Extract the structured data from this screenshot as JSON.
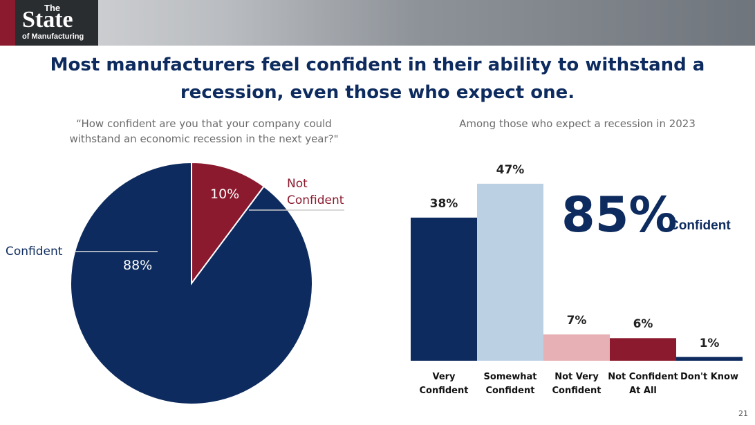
{
  "header": {
    "logo_small": "The",
    "logo_big": "State",
    "logo_sub": "of Manufacturing"
  },
  "title": "Most manufacturers feel confident in their ability to withstand a recession, even those who expect one.",
  "slide_number": "21",
  "chart_data": [
    {
      "type": "pie",
      "subtitle": "“How confident are you that your company could withstand an economic recession in the next year?\"",
      "categories": [
        "Not Confident",
        "Confident"
      ],
      "values": [
        10,
        88
      ],
      "value_labels": [
        "10%",
        "88%"
      ],
      "colors": [
        "#8b1a2e",
        "#0d2b5e"
      ]
    },
    {
      "type": "bar",
      "subtitle": "Among those who expect a recession in 2023",
      "categories": [
        "Very Confident",
        "Somewhat Confident",
        "Not Very Confident",
        "Not Confident At All",
        "Don't Know"
      ],
      "values": [
        38,
        47,
        7,
        6,
        1
      ],
      "value_labels": [
        "38%",
        "47%",
        "7%",
        "6%",
        "1%"
      ],
      "colors": [
        "#0d2b5e",
        "#bcd0e4",
        "#e6b0b5",
        "#8b1a2e",
        "#0d2b5e"
      ],
      "annotation": {
        "value": "85%",
        "label": "Confident"
      }
    }
  ]
}
